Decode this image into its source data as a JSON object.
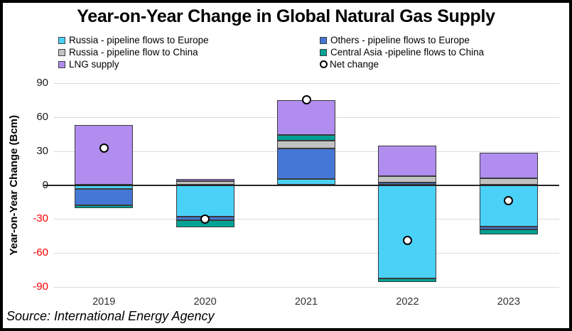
{
  "chart_data": {
    "type": "bar",
    "stacked": true,
    "title": "Year-on-Year Change in Global Natural Gas Supply",
    "ylabel": "Year-on-Year Change (Bcm)",
    "source_note": "Source: International Energy Agency",
    "categories": [
      "2019",
      "2020",
      "2021",
      "2022",
      "2023"
    ],
    "yticks": [
      90,
      60,
      30,
      0,
      -30,
      -60,
      -90
    ],
    "ylim": [
      -90,
      90
    ],
    "grid": true,
    "legend_position": "top",
    "bar_outline_color": "#3A3A3A",
    "positive_tick_color": "#1A1A1A",
    "negative_tick_color": "#FF0000",
    "gridline_color": "#DCDCDC",
    "zero_line_color": "#262626",
    "series": [
      {
        "name": "Russia - pipeline flows to Europe",
        "color": "#4AD1F8",
        "values": [
          -3.5,
          -28,
          5.5,
          -82.5,
          -36.5
        ]
      },
      {
        "name": "Others - pipeline flows to Europe",
        "color": "#4577D4",
        "values": [
          -14.5,
          -3,
          27,
          2.5,
          -2.5
        ]
      },
      {
        "name": "Russia - pipeline flow to China",
        "color": "#C2C2C2",
        "values": [
          0,
          3.5,
          6.5,
          5.5,
          6
        ]
      },
      {
        "name": "Central Asia -pipeline flows to China",
        "color": "#00A294",
        "values": [
          -2.5,
          -6.5,
          5,
          -3,
          -4.5
        ]
      },
      {
        "name": "LNG supply",
        "color": "#B08DEF",
        "values": [
          53,
          2,
          31,
          27,
          22.5
        ]
      }
    ],
    "net_change": {
      "name": "Net change",
      "marker": "open-circle",
      "marker_fill": "#FFFFFF",
      "marker_outline": "#000000",
      "values": [
        32.5,
        -30,
        75,
        -49,
        -14
      ]
    }
  },
  "legend": {
    "columns": [
      [
        {
          "label": "Russia - pipeline flows to Europe",
          "marker": "square",
          "color": "#4AD1F8"
        },
        {
          "label": "Russia - pipeline flow to China",
          "marker": "square",
          "color": "#C2C2C2"
        },
        {
          "label": "LNG supply",
          "marker": "square",
          "color": "#B08DEF"
        }
      ],
      [
        {
          "label": "Others - pipeline flows to Europe",
          "marker": "square",
          "color": "#4577D4"
        },
        {
          "label": "Central Asia -pipeline flows to China",
          "marker": "square",
          "color": "#00A294"
        },
        {
          "label": "Net change",
          "marker": "circle",
          "color": "#FFFFFF"
        }
      ]
    ]
  }
}
